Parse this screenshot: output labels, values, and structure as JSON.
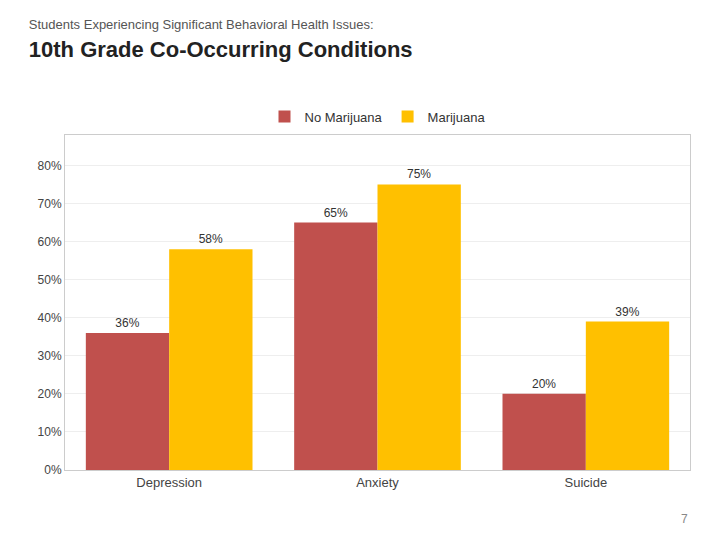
{
  "chart_data": {
    "type": "bar",
    "subtitle": "Students Experiencing Significant Behavioral Health Issues:",
    "title": "10th Grade Co-Occurring Conditions",
    "categories": [
      "Depression",
      "Anxiety",
      "Suicide"
    ],
    "series": [
      {
        "name": "No Marijuana",
        "color": "#C0504D",
        "values": [
          0.36,
          0.65,
          0.2
        ],
        "value_labels": [
          "36%",
          "65%",
          "20%"
        ]
      },
      {
        "name": "Marijuana",
        "color": "#FFC000",
        "values": [
          0.58,
          0.75,
          0.39
        ],
        "value_labels": [
          "58%",
          "75%",
          "39%"
        ]
      }
    ],
    "ylim": [
      0,
      0.88
    ],
    "yticks": [
      {
        "value": 0.0,
        "label": "0%"
      },
      {
        "value": 0.1,
        "label": "10%"
      },
      {
        "value": 0.2,
        "label": "20%"
      },
      {
        "value": 0.3,
        "label": "30%"
      },
      {
        "value": 0.4,
        "label": "40%"
      },
      {
        "value": 0.5,
        "label": "50%"
      },
      {
        "value": 0.6,
        "label": "60%"
      },
      {
        "value": 0.7,
        "label": "70%"
      },
      {
        "value": 0.8,
        "label": "80%"
      }
    ],
    "grid": true,
    "legend": "upper center",
    "data_labels": true,
    "annotations": [
      "7"
    ]
  }
}
